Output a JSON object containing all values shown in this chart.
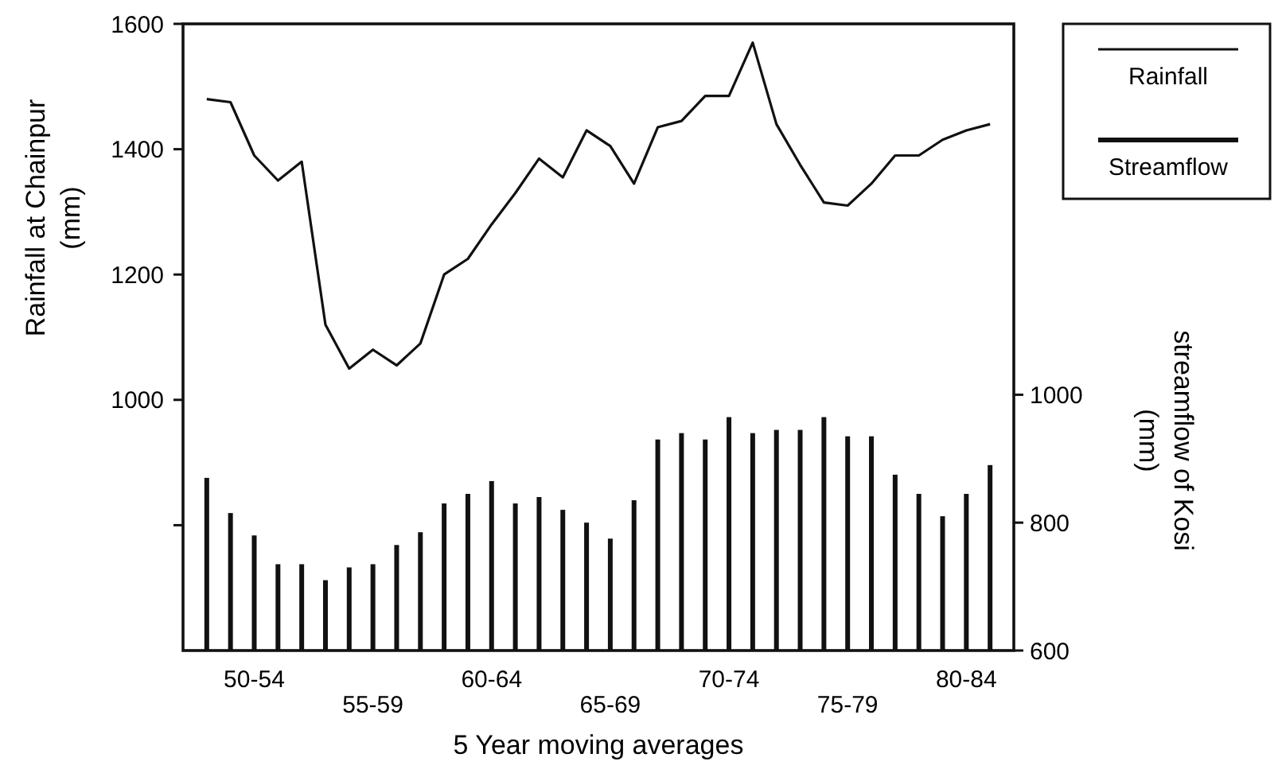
{
  "chart_data": {
    "type": "bar",
    "xlabel": "5 Year moving averages",
    "ylabel": "Rainfall at Chainpur\n(mm)",
    "y2label": "streamflow of Kosi\n(mm)",
    "categories": [
      null,
      null,
      "50-54",
      null,
      null,
      null,
      null,
      "55-59",
      null,
      null,
      null,
      null,
      "60-64",
      null,
      null,
      null,
      null,
      "65-69",
      null,
      null,
      null,
      null,
      "70-74",
      null,
      null,
      null,
      null,
      "75-79",
      null,
      null,
      null,
      null,
      "80-84",
      null
    ],
    "series": [
      {
        "name": "Rainfall",
        "type": "line",
        "color": "#111111",
        "values": [
          1480,
          1475,
          1390,
          1350,
          1380,
          1120,
          1050,
          1080,
          1055,
          1090,
          1200,
          1225,
          1280,
          1330,
          1385,
          1355,
          1430,
          1405,
          1345,
          1435,
          1445,
          1485,
          1485,
          1570,
          1440,
          1375,
          1315,
          1310,
          1345,
          1390,
          1390,
          1415,
          1430,
          1440
        ]
      },
      {
        "name": "Streamflow",
        "axis": "y2",
        "color": "#111111",
        "values": [
          870,
          815,
          780,
          735,
          735,
          710,
          730,
          735,
          765,
          785,
          830,
          845,
          865,
          830,
          840,
          820,
          800,
          775,
          835,
          930,
          940,
          930,
          965,
          940,
          945,
          945,
          965,
          935,
          935,
          875,
          845,
          810,
          845,
          890
        ]
      }
    ],
    "ylim": [
      600,
      1600
    ],
    "yticks": [
      {
        "value": 800,
        "label": null
      },
      1000,
      1200,
      1400,
      1600
    ],
    "y2lim": [
      600,
      1580
    ],
    "y2ticks": [
      600,
      800,
      1000
    ],
    "legend": "top right",
    "grid": false
  }
}
